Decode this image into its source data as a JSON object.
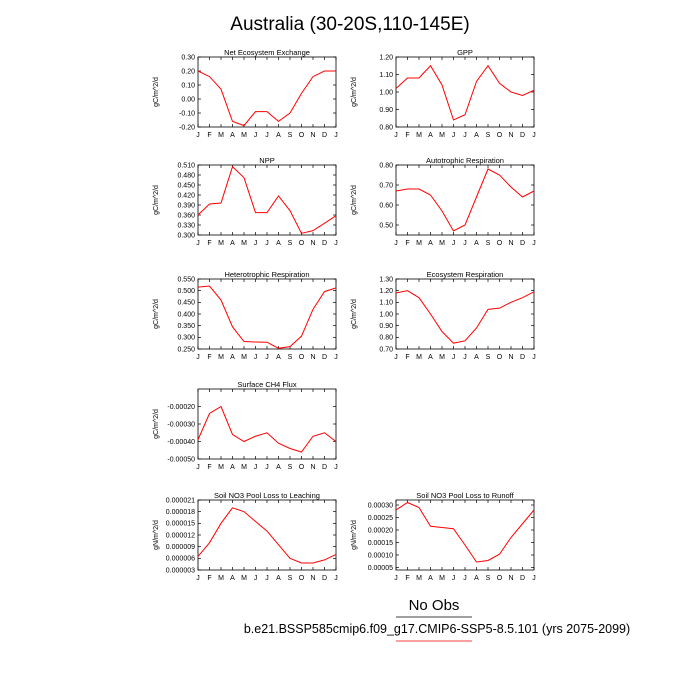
{
  "title": "Australia (30-20S,110-145E)",
  "legend": {
    "obs_label": "No Obs",
    "case_label": "b.e21.BSSP585cmip6.f09_g17.CMIP6-SSP5-8.5.101 (yrs 2075-2099)",
    "case_color": "#ff0000"
  },
  "chart_data": [
    {
      "type": "line",
      "title": "Net Ecosystem Exchange",
      "ylabel": "gC/m^2/d",
      "x": [
        "J",
        "F",
        "M",
        "A",
        "M",
        "J",
        "J",
        "A",
        "S",
        "O",
        "N",
        "D",
        "J"
      ],
      "ylim": [
        -0.2,
        0.3
      ],
      "yticks": [
        "0.30",
        "0.20",
        "0.10",
        "0.00",
        "-0.10",
        "-0.20"
      ],
      "series": [
        {
          "color": "#ff0000",
          "values": [
            0.2,
            0.16,
            0.07,
            -0.16,
            -0.19,
            -0.09,
            -0.09,
            -0.16,
            -0.1,
            0.04,
            0.16,
            0.2,
            0.2
          ]
        }
      ]
    },
    {
      "type": "line",
      "title": "GPP",
      "ylabel": "gC/m^2/d",
      "x": [
        "J",
        "F",
        "M",
        "A",
        "M",
        "J",
        "J",
        "A",
        "S",
        "O",
        "N",
        "D",
        "J"
      ],
      "ylim": [
        0.8,
        1.2
      ],
      "yticks": [
        "1.20",
        "1.10",
        "1.00",
        "0.90",
        "0.80"
      ],
      "series": [
        {
          "color": "#ff0000",
          "values": [
            1.02,
            1.08,
            1.08,
            1.15,
            1.04,
            0.84,
            0.87,
            1.06,
            1.15,
            1.05,
            1.0,
            0.98,
            1.01
          ]
        }
      ]
    },
    {
      "type": "line",
      "title": "NPP",
      "ylabel": "gC/m^2/d",
      "x": [
        "J",
        "F",
        "M",
        "A",
        "M",
        "J",
        "J",
        "A",
        "S",
        "O",
        "N",
        "D",
        "J"
      ],
      "ylim": [
        0.3,
        0.51
      ],
      "yticks": [
        "0.510",
        "0.480",
        "0.450",
        "0.420",
        "0.390",
        "0.360",
        "0.330",
        "0.300"
      ],
      "series": [
        {
          "color": "#ff0000",
          "values": [
            0.36,
            0.393,
            0.396,
            0.505,
            0.472,
            0.367,
            0.367,
            0.417,
            0.373,
            0.305,
            0.313,
            0.335,
            0.358
          ]
        }
      ]
    },
    {
      "type": "line",
      "title": "Autotrophic Respiration",
      "ylabel": "gC/m^2/d",
      "x": [
        "J",
        "F",
        "M",
        "A",
        "M",
        "J",
        "J",
        "A",
        "S",
        "O",
        "N",
        "D",
        "J"
      ],
      "ylim": [
        0.45,
        0.8
      ],
      "yticks": [
        "0.80",
        "0.70",
        "0.60",
        "0.50"
      ],
      "series": [
        {
          "color": "#ff0000",
          "values": [
            0.67,
            0.68,
            0.68,
            0.65,
            0.57,
            0.47,
            0.5,
            0.64,
            0.78,
            0.75,
            0.69,
            0.64,
            0.67
          ]
        }
      ]
    },
    {
      "type": "line",
      "title": "Heterotrophic Respiration",
      "ylabel": "gC/m^2/d",
      "x": [
        "J",
        "F",
        "M",
        "A",
        "M",
        "J",
        "J",
        "A",
        "S",
        "O",
        "N",
        "D",
        "J"
      ],
      "ylim": [
        0.25,
        0.55
      ],
      "yticks": [
        "0.550",
        "0.500",
        "0.450",
        "0.400",
        "0.350",
        "0.300",
        "0.250"
      ],
      "series": [
        {
          "color": "#ff0000",
          "values": [
            0.515,
            0.52,
            0.46,
            0.345,
            0.282,
            0.28,
            0.279,
            0.253,
            0.26,
            0.305,
            0.42,
            0.496,
            0.512
          ]
        }
      ]
    },
    {
      "type": "line",
      "title": "Ecosystem Respiration",
      "ylabel": "gC/m^2/d",
      "x": [
        "J",
        "F",
        "M",
        "A",
        "M",
        "J",
        "J",
        "A",
        "S",
        "O",
        "N",
        "D",
        "J"
      ],
      "ylim": [
        0.7,
        1.3
      ],
      "yticks": [
        "1.30",
        "1.20",
        "1.10",
        "1.00",
        "0.90",
        "0.80",
        "0.70"
      ],
      "series": [
        {
          "color": "#ff0000",
          "values": [
            1.18,
            1.2,
            1.14,
            1.0,
            0.85,
            0.75,
            0.77,
            0.88,
            1.04,
            1.05,
            1.1,
            1.14,
            1.19
          ]
        }
      ]
    },
    {
      "type": "line",
      "title": "Surface CH4 Flux",
      "ylabel": "gC/m^2/d",
      "x": [
        "J",
        "F",
        "M",
        "A",
        "M",
        "J",
        "J",
        "A",
        "S",
        "O",
        "N",
        "D",
        "J"
      ],
      "ylim": [
        -0.0005,
        -0.0001
      ],
      "yticks": [
        "-0.00020",
        "-0.00030",
        "-0.00040",
        "-0.00050"
      ],
      "series": [
        {
          "color": "#ff0000",
          "values": [
            -0.00039,
            -0.00024,
            -0.0002,
            -0.00036,
            -0.0004,
            -0.00037,
            -0.00035,
            -0.00041,
            -0.00044,
            -0.00046,
            -0.00037,
            -0.00035,
            -0.0004
          ]
        }
      ]
    },
    {
      "type": "line",
      "title": "Soil NO3 Pool Loss to Leaching",
      "ylabel": "gN/m^2/d",
      "x": [
        "J",
        "F",
        "M",
        "A",
        "M",
        "J",
        "J",
        "A",
        "S",
        "O",
        "N",
        "D",
        "J"
      ],
      "ylim": [
        3e-06,
        2.1e-05
      ],
      "yticks": [
        "0.000021",
        "0.000018",
        "0.000015",
        "0.000012",
        "0.000009",
        "0.000006",
        "0.000003"
      ],
      "series": [
        {
          "color": "#ff0000",
          "values": [
            6.5e-06,
            1e-05,
            1.5e-05,
            1.9e-05,
            1.8e-05,
            1.55e-05,
            1.3e-05,
            9.5e-06,
            6e-06,
            4.8e-06,
            4.8e-06,
            5.6e-06,
            7e-06
          ]
        }
      ]
    },
    {
      "type": "line",
      "title": "Soil NO3 Pool Loss to Runoff",
      "ylabel": "gN/m^2/d",
      "x": [
        "J",
        "F",
        "M",
        "A",
        "M",
        "J",
        "J",
        "A",
        "S",
        "O",
        "N",
        "D",
        "J"
      ],
      "ylim": [
        4e-05,
        0.00032
      ],
      "yticks": [
        "0.00030",
        "0.00025",
        "0.00020",
        "0.00015",
        "0.00010",
        "0.00005"
      ],
      "series": [
        {
          "color": "#ff0000",
          "values": [
            0.00028,
            0.00031,
            0.00029,
            0.000215,
            0.00021,
            0.000205,
            0.00014,
            7.2e-05,
            7.8e-05,
            0.000103,
            0.00017,
            0.000225,
            0.00028
          ]
        }
      ]
    }
  ]
}
